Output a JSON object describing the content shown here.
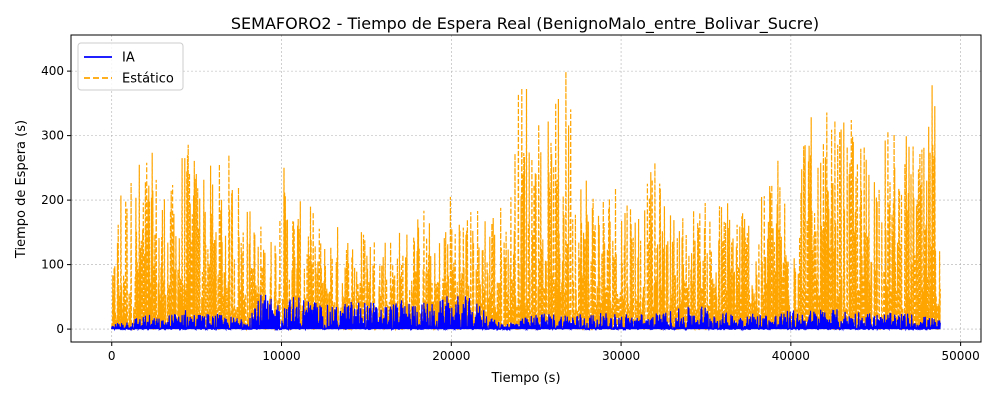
{
  "chart_data": {
    "type": "line",
    "title": "SEMAFORO2 - Tiempo de Espera Real (BenignoMalo_entre_Bolivar_Sucre)",
    "xlabel": "Tiempo (s)",
    "ylabel": "Tiempo de Espera (s)",
    "xlim": [
      -2400,
      51200
    ],
    "ylim": [
      -20,
      456
    ],
    "xticks": [
      0,
      10000,
      20000,
      30000,
      40000,
      50000
    ],
    "xtick_labels": [
      "0",
      "10000",
      "20000",
      "30000",
      "40000",
      "50000"
    ],
    "yticks": [
      0,
      100,
      200,
      300,
      400
    ],
    "ytick_labels": [
      "0",
      "100",
      "200",
      "300",
      "400"
    ],
    "grid": true,
    "legend_position": "top-left",
    "data_note_points_per_series": 2440,
    "series": [
      {
        "name": "IA",
        "color": "#0000ff",
        "style": "solid",
        "envelope": {
          "x": [
            0,
            500,
            1000,
            2000,
            3000,
            4000,
            5000,
            6000,
            7000,
            7500,
            8000,
            8500,
            9000,
            9500,
            10000,
            11000,
            12000,
            13000,
            14000,
            15000,
            16000,
            17000,
            18000,
            19000,
            20000,
            21000,
            22000,
            22500,
            23000,
            24000,
            25000,
            26000,
            27000,
            28000,
            29000,
            30000,
            31000,
            32000,
            33000,
            34000,
            35000,
            36000,
            37000,
            38000,
            39000,
            40000,
            41000,
            42000,
            43000,
            44000,
            45000,
            46000,
            47000,
            48000,
            48800
          ],
          "y": [
            5,
            15,
            15,
            25,
            15,
            35,
            25,
            25,
            20,
            20,
            30,
            55,
            55,
            45,
            45,
            55,
            45,
            35,
            45,
            45,
            40,
            45,
            45,
            40,
            55,
            50,
            35,
            15,
            10,
            15,
            25,
            25,
            25,
            25,
            25,
            25,
            25,
            25,
            30,
            35,
            40,
            25,
            30,
            25,
            25,
            30,
            30,
            35,
            30,
            30,
            25,
            25,
            25,
            20,
            15
          ]
        }
      },
      {
        "name": "Estático",
        "color": "#ffa500",
        "style": "dashed",
        "envelope": {
          "x": [
            0,
            500,
            1000,
            1500,
            2000,
            3000,
            3500,
            4000,
            5000,
            5500,
            6000,
            6500,
            7000,
            7500,
            8000,
            8500,
            9000,
            9500,
            10000,
            11000,
            12000,
            12500,
            13000,
            14000,
            15000,
            16000,
            17000,
            18000,
            18500,
            19000,
            20000,
            21000,
            22000,
            23000,
            23500,
            24000,
            24500,
            25000,
            25500,
            26000,
            26500,
            27000,
            27500,
            28000,
            29000,
            30000,
            31000,
            32000,
            33000,
            34000,
            35000,
            36000,
            37000,
            38000,
            39000,
            40000,
            41000,
            41500,
            42000,
            43000,
            44000,
            44500,
            45000,
            46000,
            47000,
            47500,
            48000,
            48300,
            48700
          ],
          "y": [
            60,
            260,
            240,
            270,
            290,
            250,
            220,
            300,
            280,
            270,
            250,
            270,
            280,
            250,
            200,
            180,
            160,
            150,
            270,
            200,
            190,
            140,
            170,
            160,
            170,
            160,
            160,
            180,
            210,
            120,
            230,
            190,
            210,
            200,
            230,
            400,
            430,
            350,
            340,
            320,
            430,
            420,
            260,
            270,
            230,
            260,
            210,
            260,
            180,
            200,
            200,
            210,
            230,
            170,
            300,
            210,
            400,
            230,
            340,
            330,
            320,
            290,
            310,
            320,
            300,
            290,
            280,
            400,
            350
          ]
        }
      }
    ]
  },
  "legend": {
    "items": [
      {
        "label": "IA",
        "color": "#0000ff",
        "dash": ""
      },
      {
        "label": "Estático",
        "color": "#ffa500",
        "dash": "6,3"
      }
    ]
  }
}
